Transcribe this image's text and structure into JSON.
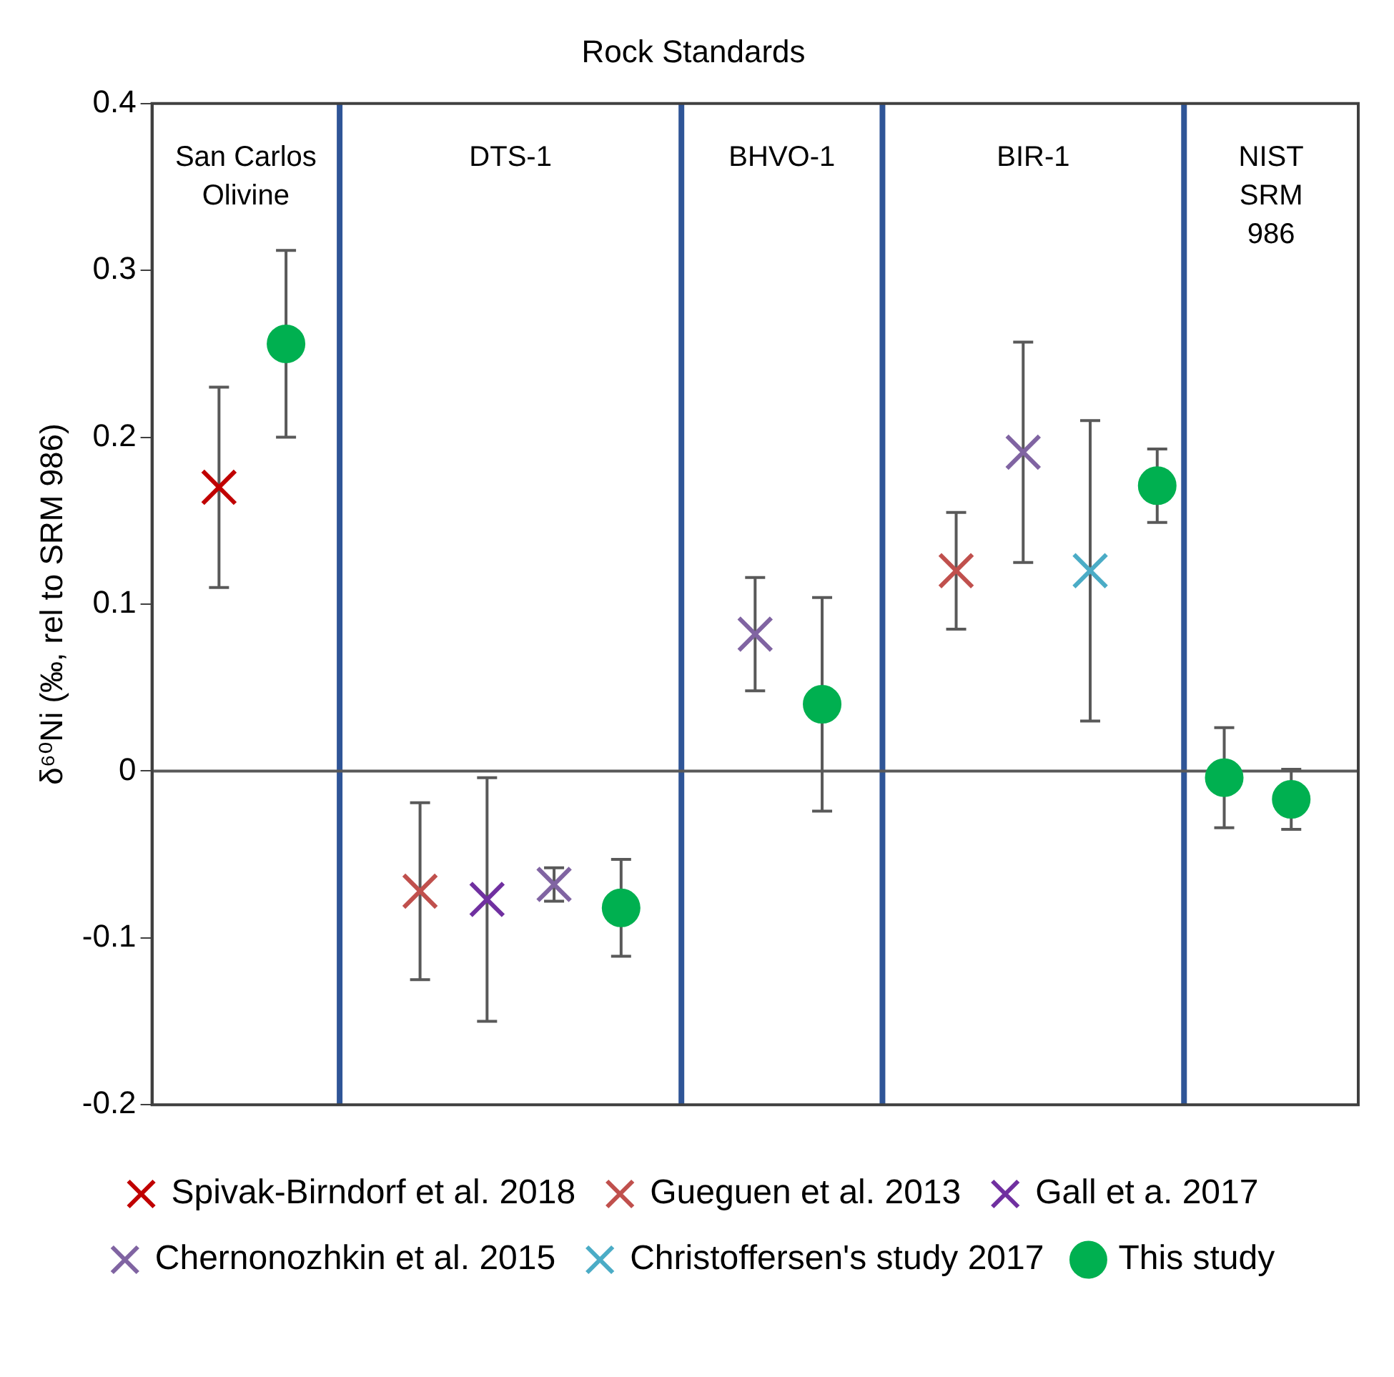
{
  "chart_data": {
    "type": "scatter",
    "title": "Rock Standards",
    "ylabel": "δ⁶⁰Ni (‰, rel to SRM 986)",
    "categories": [
      null,
      null,
      null,
      null,
      null,
      null,
      null,
      null,
      null,
      null,
      null,
      null,
      null,
      null,
      null,
      null,
      null,
      null,
      null
    ],
    "ylim": [
      -0.2,
      0.4
    ],
    "yticks": [
      -0.2,
      -0.1,
      0,
      0.1,
      0.2,
      0.3,
      0.4
    ],
    "legend": "bottom",
    "series": [
      {
        "name": "Spivak-Birndorf et al. 2018",
        "color": "#c00000",
        "marker": "cross",
        "values": [
          null,
          0.17,
          null,
          null,
          null,
          null,
          null,
          null,
          null,
          null,
          null,
          null,
          null,
          null,
          null,
          null,
          null,
          null,
          null
        ],
        "errors": [
          null,
          0.06,
          null,
          null,
          null,
          null,
          null,
          null,
          null,
          null,
          null,
          null,
          null,
          null,
          null,
          null,
          null,
          null,
          null
        ]
      },
      {
        "name": "Gueguen et al. 2013",
        "color": "#c0504d",
        "marker": "cross",
        "values": [
          null,
          null,
          null,
          null,
          -0.072,
          null,
          null,
          null,
          null,
          null,
          null,
          null,
          0.12,
          null,
          null,
          null,
          null,
          null,
          null
        ],
        "errors": [
          null,
          null,
          null,
          null,
          0.053,
          null,
          null,
          null,
          null,
          null,
          null,
          null,
          0.035,
          null,
          null,
          null,
          null,
          null,
          null
        ]
      },
      {
        "name": "Gall et a. 2017",
        "color": "#7030a0",
        "marker": "cross",
        "values": [
          null,
          null,
          null,
          null,
          null,
          -0.077,
          null,
          null,
          null,
          null,
          null,
          null,
          null,
          null,
          null,
          null,
          null,
          null,
          null
        ],
        "errors": [
          null,
          null,
          null,
          null,
          null,
          0.073,
          null,
          null,
          null,
          null,
          null,
          null,
          null,
          null,
          null,
          null,
          null,
          null,
          null
        ]
      },
      {
        "name": "Chernonozhkin et al. 2015",
        "color": "#8064a2",
        "marker": "cross",
        "values": [
          null,
          null,
          null,
          null,
          null,
          null,
          -0.068,
          null,
          null,
          0.082,
          null,
          null,
          null,
          0.191,
          null,
          null,
          null,
          null,
          null
        ],
        "errors": [
          null,
          null,
          null,
          null,
          null,
          null,
          0.01,
          null,
          null,
          0.034,
          null,
          null,
          null,
          0.066,
          null,
          null,
          null,
          null,
          null
        ]
      },
      {
        "name": "Christoffersen's study 2017",
        "color": "#4bacc6",
        "marker": "cross",
        "values": [
          null,
          null,
          null,
          null,
          null,
          null,
          null,
          null,
          null,
          null,
          null,
          null,
          null,
          null,
          0.12,
          null,
          null,
          null,
          null
        ],
        "errors": [
          null,
          null,
          null,
          null,
          null,
          null,
          null,
          null,
          null,
          null,
          null,
          null,
          null,
          null,
          0.09,
          null,
          null,
          null,
          null
        ]
      },
      {
        "name": "This study",
        "color": "#00b050",
        "marker": "circle",
        "values": [
          null,
          null,
          0.256,
          null,
          null,
          null,
          null,
          -0.082,
          null,
          null,
          0.04,
          null,
          null,
          null,
          null,
          0.171,
          -0.004,
          -0.017,
          null
        ],
        "errors": [
          null,
          null,
          0.056,
          null,
          null,
          null,
          null,
          0.029,
          null,
          null,
          0.064,
          null,
          null,
          null,
          null,
          0.022,
          0.03,
          0.018,
          null
        ]
      }
    ],
    "ref_lines": [
      {
        "axis": "y",
        "value": 0,
        "color": "#595959"
      }
    ],
    "annotations": [
      "San Carlos\nOlivine",
      "DTS-1",
      "BHVO-1",
      "BIR-1",
      "NIST\nSRM\n986"
    ]
  }
}
